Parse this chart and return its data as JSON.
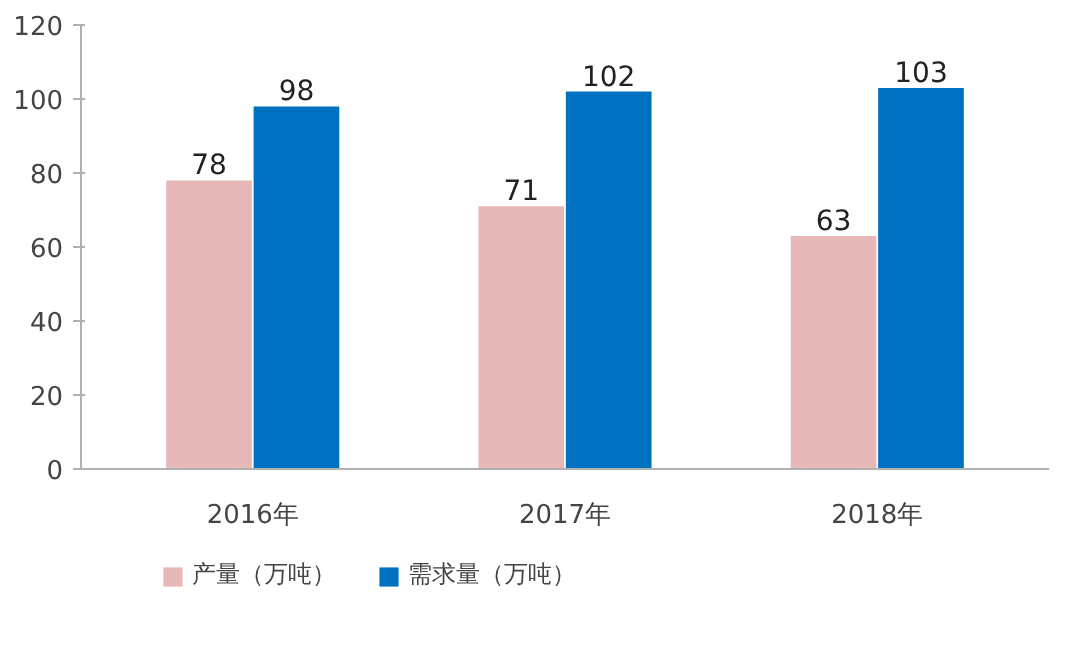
{
  "chart_data": {
    "type": "bar",
    "categories": [
      "2016年",
      "2017年",
      "2018年"
    ],
    "series": [
      {
        "name": "产量（万吨）",
        "color": "#e6b8b7",
        "values": [
          78,
          71,
          63
        ]
      },
      {
        "name": "需求量（万吨）",
        "color": "#0070c0",
        "values": [
          98,
          102,
          103
        ]
      }
    ],
    "ylim": [
      0,
      120
    ],
    "yticks": [
      0,
      20,
      40,
      60,
      80,
      100,
      120
    ],
    "grid": false,
    "legend": "bottom",
    "data_labels": true
  }
}
